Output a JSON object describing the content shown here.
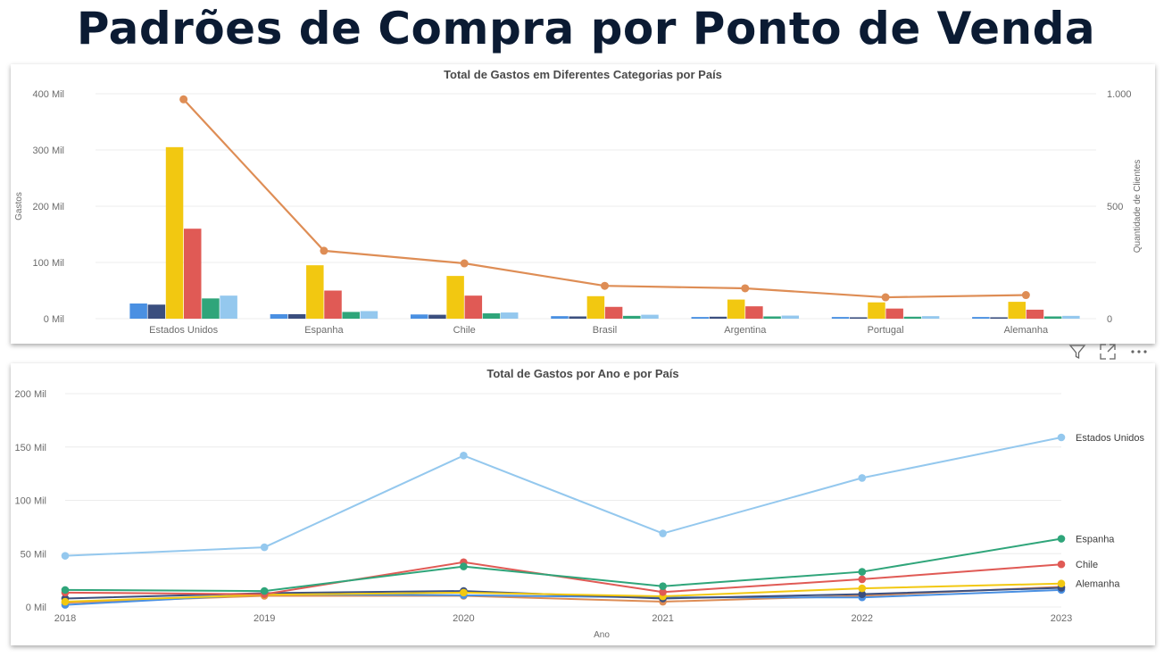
{
  "page": {
    "title": "Padrões de Compra por Ponto de Venda"
  },
  "toolbar": {
    "icons": [
      "filter-icon",
      "focus-mode-icon",
      "more-options-icon"
    ]
  },
  "colors": {
    "cat1": "#4a90e2",
    "cat2": "#3b4f7f",
    "cat3": "#f2c811",
    "cat4": "#e05a55",
    "cat5": "#2fa57a",
    "cat6": "#94c8ee",
    "line": "#de8d55"
  },
  "chart_data": [
    {
      "type": "bar",
      "title": "Total de Gastos em Diferentes Categorias por País",
      "ylabel": "Gastos",
      "y2label": "Quantidade de Clientes",
      "categories": [
        "Estados Unidos",
        "Espanha",
        "Chile",
        "Brasil",
        "Argentina",
        "Portugal",
        "Alemanha"
      ],
      "ylim": [
        0,
        400000
      ],
      "yticks": [
        0,
        100000,
        200000,
        300000,
        400000
      ],
      "ytick_labels": [
        "0 Mil",
        "100 Mil",
        "200 Mil",
        "300 Mil",
        "400 Mil"
      ],
      "y2lim": [
        0,
        1000
      ],
      "y2ticks": [
        0,
        500,
        1000
      ],
      "y2tick_labels": [
        "0",
        "500",
        "1.000"
      ],
      "grid": true,
      "series": [
        {
          "values": [
            27000,
            8000,
            7500,
            4500,
            3000,
            3000,
            3000
          ],
          "color": "#4a90e2"
        },
        {
          "values": [
            25000,
            8000,
            7000,
            4000,
            3500,
            2500,
            2500
          ],
          "color": "#3b4f7f"
        },
        {
          "values": [
            305000,
            95000,
            76000,
            40000,
            34000,
            29000,
            30000
          ],
          "color": "#f2c811"
        },
        {
          "values": [
            160000,
            50000,
            41000,
            21000,
            22000,
            18000,
            16000
          ],
          "color": "#e05a55"
        },
        {
          "values": [
            36000,
            12000,
            9500,
            5000,
            4000,
            3500,
            4000
          ],
          "color": "#2fa57a"
        },
        {
          "values": [
            41000,
            13500,
            11000,
            7000,
            5500,
            4500,
            5000
          ],
          "color": "#94c8ee"
        }
      ],
      "line_series": {
        "axis": "right",
        "values": [
          975,
          302,
          246,
          146,
          135,
          95,
          105
        ],
        "color": "#de8d55"
      }
    },
    {
      "type": "line",
      "title": "Total de Gastos por Ano e por País",
      "xlabel": "Ano",
      "x": [
        "2018",
        "2019",
        "2020",
        "2021",
        "2022",
        "2023"
      ],
      "ylim": [
        0,
        200000
      ],
      "yticks": [
        0,
        50000,
        100000,
        150000,
        200000
      ],
      "ytick_labels": [
        "0 Mil",
        "50 Mil",
        "100 Mil",
        "150 Mil",
        "200 Mil"
      ],
      "grid": true,
      "series": [
        {
          "name": "Estados Unidos",
          "values": [
            48000,
            56000,
            142000,
            69000,
            121000,
            159000
          ],
          "color": "#94c8ee"
        },
        {
          "name": "Espanha",
          "values": [
            16000,
            15000,
            38000,
            19500,
            33000,
            64000
          ],
          "color": "#2fa57a"
        },
        {
          "name": "Chile",
          "values": [
            13500,
            12000,
            42000,
            14000,
            26000,
            40000
          ],
          "color": "#e05a55"
        },
        {
          "name": "Alemanha",
          "values": [
            5000,
            11500,
            13500,
            10000,
            17500,
            22000
          ],
          "color": "#f2c811"
        },
        {
          "values": [
            8000,
            13000,
            15000,
            8000,
            12000,
            18000
          ],
          "color": "#3b4f7f"
        },
        {
          "values": [
            2000,
            12000,
            11000,
            9000,
            9000,
            16000
          ],
          "color": "#4a90e2"
        },
        {
          "values": [
            4000,
            10500,
            10500,
            5000,
            10500,
            19000
          ],
          "color": "#de8d55"
        }
      ]
    }
  ]
}
